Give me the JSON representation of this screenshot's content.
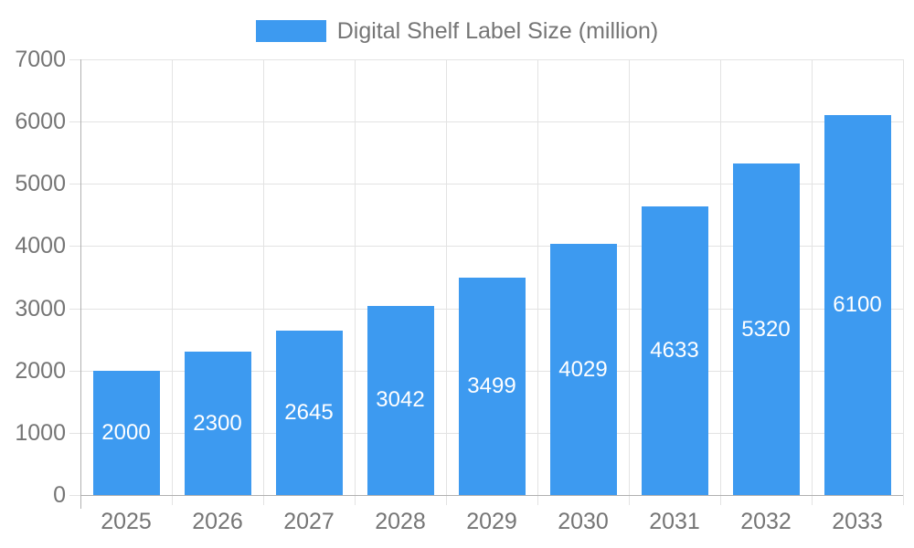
{
  "legend": {
    "label": "Digital Shelf Label Size (million)"
  },
  "chart_data": {
    "type": "bar",
    "title": "",
    "categories": [
      "2025",
      "2026",
      "2027",
      "2028",
      "2029",
      "2030",
      "2031",
      "2032",
      "2033"
    ],
    "series": [
      {
        "name": "Digital Shelf Label Size (million)",
        "values": [
          2000,
          2300,
          2645,
          3042,
          3499,
          4029,
          4633,
          5320,
          6100
        ]
      }
    ],
    "value_labels_shown": true,
    "xlabel": "",
    "ylabel": "",
    "ylim": [
      0,
      7000
    ],
    "ytick_step": 1000,
    "grid": true,
    "legend_position": "top",
    "colors": {
      "bar": "#3d9af0",
      "value_label": "#ffffff",
      "axis_text": "#757575",
      "gridline": "#e3e3e3",
      "axis_line": "#b0b0b0"
    }
  }
}
